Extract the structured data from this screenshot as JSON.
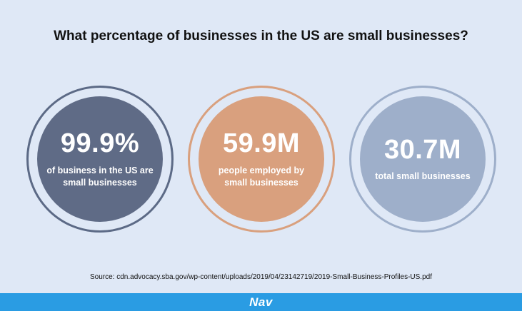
{
  "title": "What percentage of businesses in the US are small businesses?",
  "stats": [
    {
      "value": "99.9%",
      "label": "of business in the US are small businesses",
      "fill_color": "#5f6b86",
      "ring_color": "#5c6a86"
    },
    {
      "value": "59.9M",
      "label": "people employed by small businesses",
      "fill_color": "#d9a07e",
      "ring_color": "#d9a07e"
    },
    {
      "value": "30.7M",
      "label": "total small businesses",
      "fill_color": "#9eafca",
      "ring_color": "#9eafca"
    }
  ],
  "source": "Source: cdn.advocacy.sba.gov/wp-content/uploads/2019/04/23142719/2019-Small-Business-Profiles-US.pdf",
  "footer": {
    "logo": "Nav",
    "color": "#2a9ce3"
  }
}
